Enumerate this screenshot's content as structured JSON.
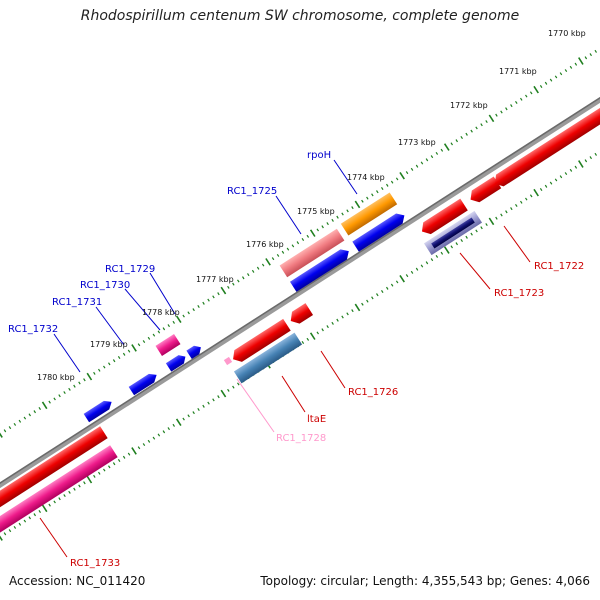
{
  "title": "Rhodospirillum centenum SW chromosome, complete genome",
  "footer": {
    "accession": "Accession: NC_011420",
    "summary": "Topology: circular; Length: 4,355,543 bp; Genes: 4,066"
  },
  "colors": {
    "backbone": "#7f7f7f",
    "tick": "#1f7f1f",
    "forward_label": "#0000cc",
    "reverse_label": "#cc0000",
    "pink_label": "#ff99cc"
  },
  "ticks": [
    "1770 kbp",
    "1771 kbp",
    "1772 kbp",
    "1773 kbp",
    "1774 kbp",
    "1775 kbp",
    "1776 kbp",
    "1777 kbp",
    "1778 kbp",
    "1779 kbp",
    "1780 kbp"
  ],
  "gene_labels": {
    "RC1_1732": "RC1_1732",
    "RC1_1731": "RC1_1731",
    "RC1_1730": "RC1_1730",
    "RC1_1729": "RC1_1729",
    "RC1_1725": "RC1_1725",
    "rpoH": "rpoH",
    "RC1_1722": "RC1_1722",
    "RC1_1723": "RC1_1723",
    "RC1_1726": "RC1_1726",
    "ltaE": "ltaE",
    "RC1_1728": "RC1_1728",
    "RC1_1733": "RC1_1733"
  }
}
